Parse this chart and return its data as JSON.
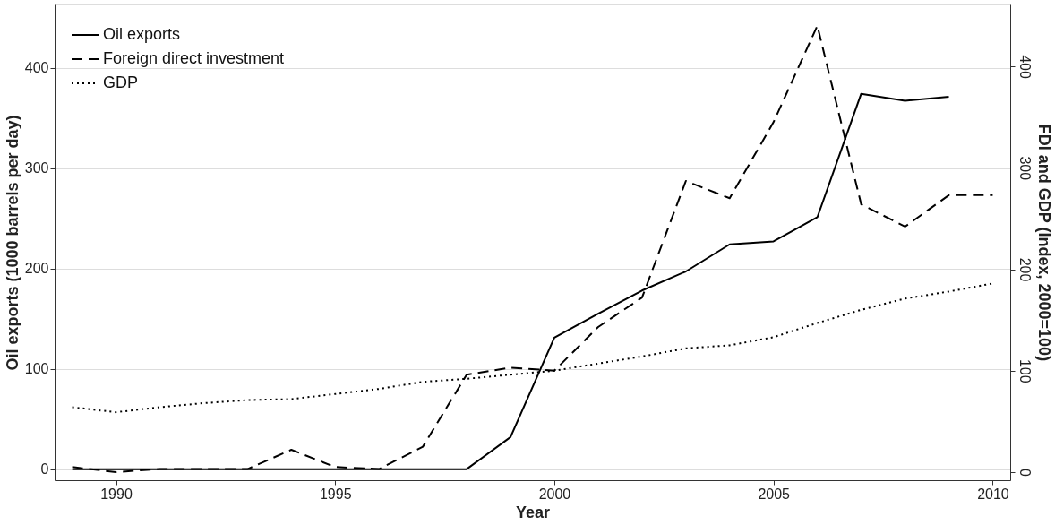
{
  "chart_data": {
    "type": "line",
    "xlabel": "Year",
    "ylabel": "Oil exports (1000 barrels per day)",
    "y2label": "FDI and GDP (Index, 2000=100)",
    "xlim": [
      1988.6,
      2010.4
    ],
    "xticks": [
      1990,
      1995,
      2000,
      2005,
      2010
    ],
    "ylim": [
      -11,
      463
    ],
    "yticks": [
      0,
      100,
      200,
      300,
      400
    ],
    "y2lim": [
      -8,
      461
    ],
    "y2ticks": [
      0,
      100,
      200,
      300,
      400
    ],
    "grid": "y",
    "legend": "top left",
    "x": [
      1989,
      1990,
      1991,
      1992,
      1993,
      1994,
      1995,
      1996,
      1997,
      1998,
      1999,
      2000,
      2001,
      2002,
      2003,
      2004,
      2005,
      2006,
      2007,
      2008,
      2009,
      2010
    ],
    "series": [
      {
        "name": "Oil exports",
        "color": "#000000",
        "line_style": "solid",
        "values": [
          0,
          0,
          0,
          0,
          0,
          0,
          0,
          0,
          0,
          0,
          32,
          131,
          155,
          178,
          197,
          224,
          227,
          251,
          374,
          367,
          371,
          null
        ]
      },
      {
        "name": "Foreign direct investment",
        "color": "#000000",
        "line_style": "dashed",
        "axis": "y2",
        "values": [
          5,
          0,
          3,
          3,
          3,
          22,
          5,
          3,
          25,
          96,
          103,
          100,
          143,
          172,
          287,
          270,
          345,
          440,
          264,
          242,
          273,
          273
        ]
      },
      {
        "name": "GDP",
        "color": "#000000",
        "line_style": "dotted",
        "axis": "y2",
        "values": [
          64,
          59,
          64,
          68,
          71,
          72,
          77,
          82,
          89,
          92,
          96,
          100,
          107,
          114,
          122,
          125,
          133,
          147,
          160,
          171,
          178,
          186
        ]
      }
    ]
  }
}
